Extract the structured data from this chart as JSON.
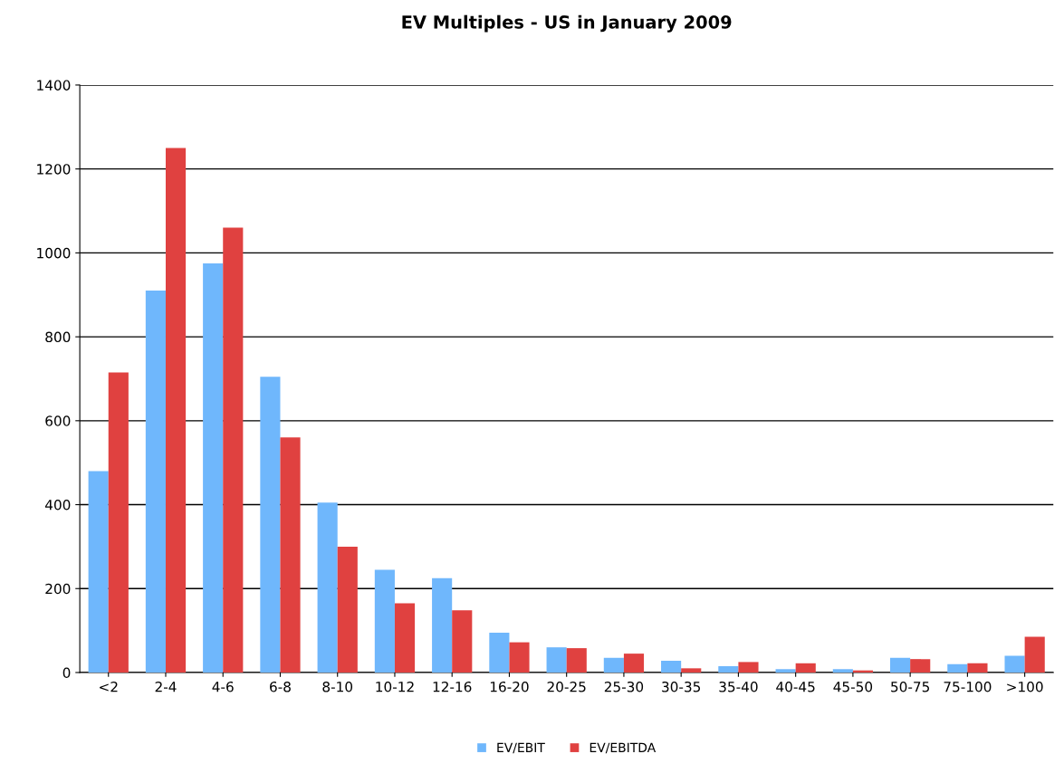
{
  "chart_data": {
    "type": "bar",
    "title": "EV Multiples - US in January 2009",
    "categories": [
      "<2",
      "2-4",
      "4-6",
      "6-8",
      "8-10",
      "10-12",
      "12-16",
      "16-20",
      "20-25",
      "25-30",
      "30-35",
      "35-40",
      "40-45",
      "45-50",
      "50-75",
      "75-100",
      ">100"
    ],
    "series": [
      {
        "name": "EV/EBIT",
        "color": "#6fb7fc",
        "values": [
          480,
          910,
          975,
          705,
          405,
          245,
          225,
          95,
          60,
          35,
          28,
          15,
          8,
          8,
          35,
          20,
          40
        ]
      },
      {
        "name": "EV/EBITDA",
        "color": "#e04140",
        "values": [
          715,
          1250,
          1060,
          560,
          300,
          165,
          148,
          72,
          58,
          45,
          10,
          25,
          22,
          5,
          32,
          22,
          85
        ]
      }
    ],
    "ylim": [
      0,
      1400
    ],
    "yticks": [
      0,
      200,
      400,
      600,
      800,
      1000,
      1200,
      1400
    ],
    "grid": "y",
    "legend": "bottom"
  }
}
